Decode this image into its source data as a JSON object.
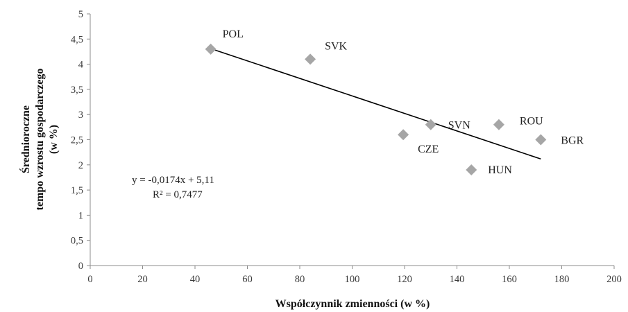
{
  "chart_data": {
    "type": "scatter",
    "xlabel": "Współczynnik zmienności (w %)",
    "ylabel_lines": [
      "Średnioroczne",
      "tempo wzrostu gospodarczego",
      "(w %)"
    ],
    "xlim": [
      0,
      200
    ],
    "ylim": [
      0,
      5
    ],
    "x_ticks": [
      "0",
      "20",
      "40",
      "60",
      "80",
      "100",
      "120",
      "140",
      "160",
      "180",
      "200"
    ],
    "y_ticks": [
      "0",
      "0,5",
      "1",
      "1,5",
      "2",
      "2,5",
      "3",
      "3,5",
      "4",
      "4,5",
      "5"
    ],
    "grid": false,
    "legend": "none",
    "marker_color": "#A6A6A6",
    "trend_color": "#000000",
    "points": [
      {
        "label": "POL",
        "x": 46,
        "y": 4.3
      },
      {
        "label": "SVK",
        "x": 84,
        "y": 4.1
      },
      {
        "label": "CZE",
        "x": 119.5,
        "y": 2.6
      },
      {
        "label": "SVN",
        "x": 130,
        "y": 2.8
      },
      {
        "label": "HUN",
        "x": 145.5,
        "y": 1.9
      },
      {
        "label": "ROU",
        "x": 156,
        "y": 2.8
      },
      {
        "label": "BGR",
        "x": 172,
        "y": 2.5
      }
    ],
    "trendline": {
      "slope": -0.0174,
      "intercept": 5.11,
      "x_range": [
        46,
        172
      ],
      "equation": "y = -0,0174x + 5,11",
      "r2": "R² = 0,7477"
    }
  }
}
